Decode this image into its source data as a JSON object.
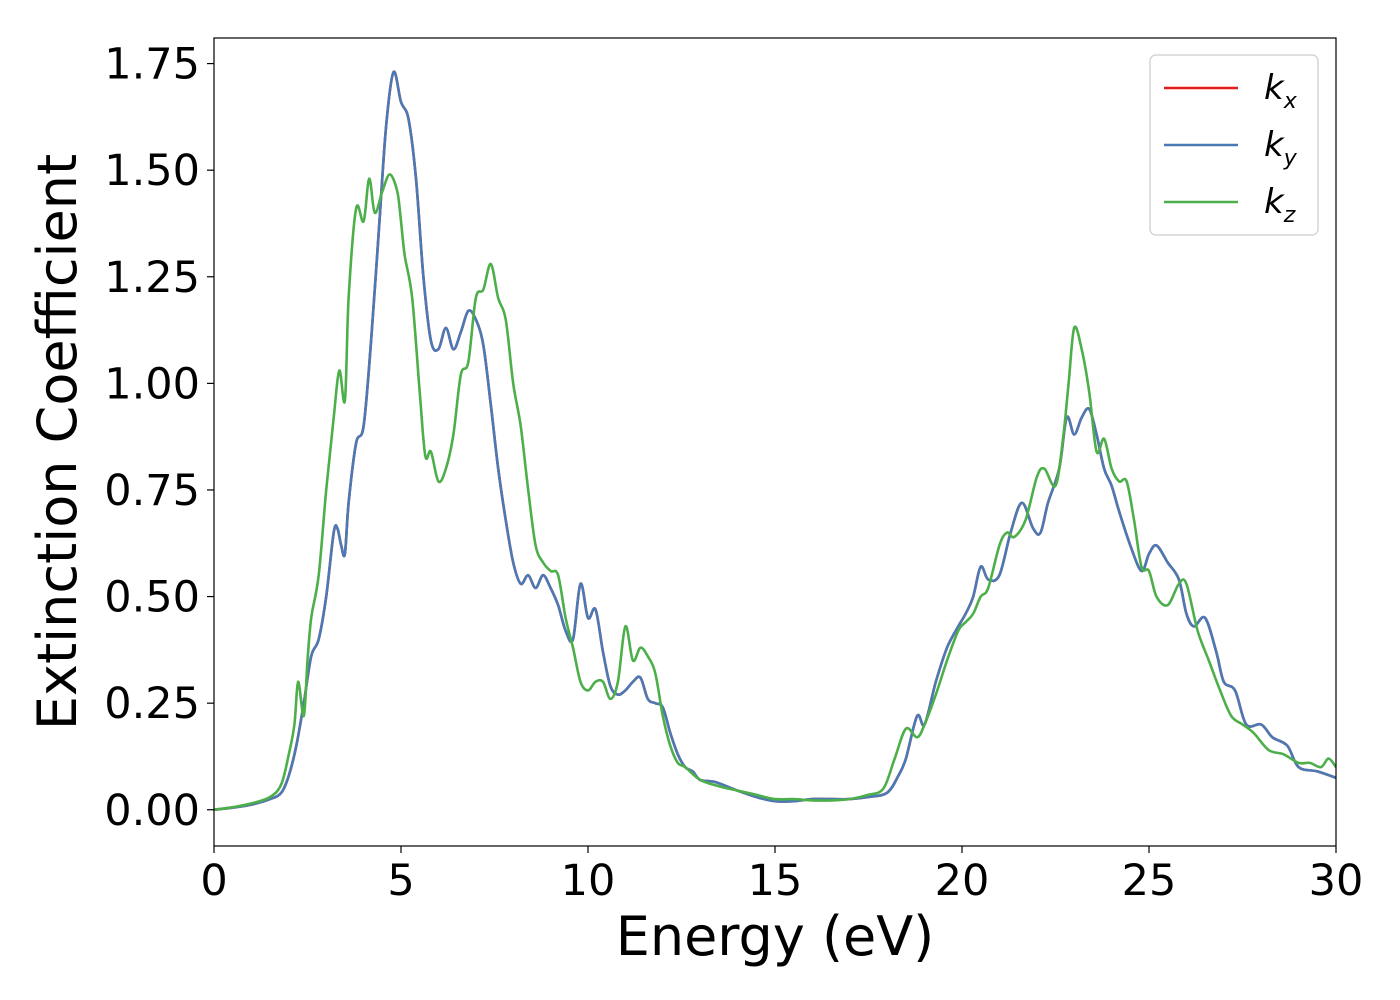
{
  "chart_data": {
    "type": "line",
    "xlabel": "Energy (eV)",
    "ylabel": "Extinction Coefficient",
    "xlim": [
      0,
      30
    ],
    "ylim": [
      -0.085,
      1.81
    ],
    "xticks": [
      0,
      5,
      10,
      15,
      20,
      25,
      30
    ],
    "xtick_labels": [
      "0",
      "5",
      "10",
      "15",
      "20",
      "25",
      "30"
    ],
    "yticks": [
      0,
      0.25,
      0.5,
      0.75,
      1.0,
      1.25,
      1.5,
      1.75
    ],
    "ytick_labels": [
      "0.00",
      "0.25",
      "0.50",
      "0.75",
      "1.00",
      "1.25",
      "1.50",
      "1.75"
    ],
    "grid": false,
    "legend_position": "top-right",
    "series": [
      {
        "name": "k_x",
        "label_main": "k",
        "label_sub": "x",
        "color": "#e41a1c",
        "x": [
          0,
          0.5,
          1.0,
          1.5,
          1.8,
          2.0,
          2.2,
          2.4,
          2.6,
          2.8,
          3.0,
          3.2,
          3.3,
          3.4,
          3.5,
          3.6,
          3.8,
          4.0,
          4.2,
          4.4,
          4.6,
          4.8,
          5.0,
          5.2,
          5.4,
          5.6,
          5.8,
          6.0,
          6.2,
          6.4,
          6.6,
          6.8,
          7.0,
          7.2,
          7.4,
          7.6,
          7.8,
          8.0,
          8.2,
          8.4,
          8.6,
          8.8,
          9.0,
          9.2,
          9.4,
          9.6,
          9.8,
          10.0,
          10.2,
          10.4,
          10.6,
          10.8,
          11.0,
          11.2,
          11.4,
          11.6,
          11.8,
          12.0,
          12.2,
          12.4,
          12.6,
          12.8,
          13.0,
          13.4,
          14.0,
          14.5,
          15.0,
          15.5,
          16.0,
          16.5,
          17.0,
          17.5,
          18.0,
          18.3,
          18.5,
          18.8,
          19.0,
          19.3,
          19.6,
          19.9,
          20.1,
          20.3,
          20.5,
          20.7,
          21.0,
          21.3,
          21.6,
          21.9,
          22.1,
          22.3,
          22.6,
          22.8,
          23.0,
          23.2,
          23.4,
          23.6,
          23.8,
          24.0,
          24.2,
          24.5,
          24.8,
          25.0,
          25.2,
          25.5,
          25.8,
          26.0,
          26.2,
          26.5,
          26.8,
          27.0,
          27.3,
          27.6,
          28.0,
          28.3,
          28.7,
          29.0,
          29.5,
          30.0
        ],
        "values": [
          0,
          0.005,
          0.012,
          0.025,
          0.04,
          0.08,
          0.15,
          0.25,
          0.36,
          0.4,
          0.5,
          0.65,
          0.66,
          0.62,
          0.6,
          0.72,
          0.86,
          0.9,
          1.1,
          1.35,
          1.6,
          1.73,
          1.66,
          1.62,
          1.48,
          1.25,
          1.1,
          1.08,
          1.13,
          1.08,
          1.12,
          1.17,
          1.15,
          1.09,
          0.95,
          0.8,
          0.68,
          0.58,
          0.53,
          0.55,
          0.52,
          0.55,
          0.52,
          0.48,
          0.42,
          0.4,
          0.53,
          0.45,
          0.47,
          0.37,
          0.29,
          0.27,
          0.28,
          0.3,
          0.31,
          0.26,
          0.25,
          0.24,
          0.18,
          0.13,
          0.1,
          0.09,
          0.07,
          0.065,
          0.045,
          0.03,
          0.02,
          0.02,
          0.025,
          0.025,
          0.025,
          0.03,
          0.04,
          0.08,
          0.12,
          0.22,
          0.2,
          0.3,
          0.38,
          0.43,
          0.46,
          0.5,
          0.57,
          0.54,
          0.55,
          0.65,
          0.72,
          0.66,
          0.65,
          0.72,
          0.8,
          0.92,
          0.88,
          0.92,
          0.94,
          0.88,
          0.8,
          0.76,
          0.7,
          0.62,
          0.56,
          0.6,
          0.62,
          0.58,
          0.54,
          0.46,
          0.43,
          0.45,
          0.37,
          0.3,
          0.28,
          0.2,
          0.2,
          0.17,
          0.15,
          0.1,
          0.09,
          0.075
        ]
      },
      {
        "name": "k_y",
        "label_main": "k",
        "label_sub": "y",
        "color": "#4a7ab5",
        "x": [
          0,
          0.5,
          1.0,
          1.5,
          1.8,
          2.0,
          2.2,
          2.4,
          2.6,
          2.8,
          3.0,
          3.2,
          3.3,
          3.4,
          3.5,
          3.6,
          3.8,
          4.0,
          4.2,
          4.4,
          4.6,
          4.8,
          5.0,
          5.2,
          5.4,
          5.6,
          5.8,
          6.0,
          6.2,
          6.4,
          6.6,
          6.8,
          7.0,
          7.2,
          7.4,
          7.6,
          7.8,
          8.0,
          8.2,
          8.4,
          8.6,
          8.8,
          9.0,
          9.2,
          9.4,
          9.6,
          9.8,
          10.0,
          10.2,
          10.4,
          10.6,
          10.8,
          11.0,
          11.2,
          11.4,
          11.6,
          11.8,
          12.0,
          12.2,
          12.4,
          12.6,
          12.8,
          13.0,
          13.4,
          14.0,
          14.5,
          15.0,
          15.5,
          16.0,
          16.5,
          17.0,
          17.5,
          18.0,
          18.3,
          18.5,
          18.8,
          19.0,
          19.3,
          19.6,
          19.9,
          20.1,
          20.3,
          20.5,
          20.7,
          21.0,
          21.3,
          21.6,
          21.9,
          22.1,
          22.3,
          22.6,
          22.8,
          23.0,
          23.2,
          23.4,
          23.6,
          23.8,
          24.0,
          24.2,
          24.5,
          24.8,
          25.0,
          25.2,
          25.5,
          25.8,
          26.0,
          26.2,
          26.5,
          26.8,
          27.0,
          27.3,
          27.6,
          28.0,
          28.3,
          28.7,
          29.0,
          29.5,
          30.0
        ],
        "values": [
          0,
          0.005,
          0.012,
          0.025,
          0.04,
          0.08,
          0.15,
          0.25,
          0.36,
          0.4,
          0.5,
          0.65,
          0.66,
          0.62,
          0.6,
          0.72,
          0.86,
          0.9,
          1.1,
          1.35,
          1.6,
          1.73,
          1.66,
          1.62,
          1.48,
          1.25,
          1.1,
          1.08,
          1.13,
          1.08,
          1.12,
          1.17,
          1.15,
          1.09,
          0.95,
          0.8,
          0.68,
          0.58,
          0.53,
          0.55,
          0.52,
          0.55,
          0.52,
          0.48,
          0.42,
          0.4,
          0.53,
          0.45,
          0.47,
          0.37,
          0.29,
          0.27,
          0.28,
          0.3,
          0.31,
          0.26,
          0.25,
          0.24,
          0.18,
          0.13,
          0.1,
          0.09,
          0.07,
          0.065,
          0.045,
          0.03,
          0.02,
          0.02,
          0.025,
          0.025,
          0.025,
          0.03,
          0.04,
          0.08,
          0.12,
          0.22,
          0.2,
          0.3,
          0.38,
          0.43,
          0.46,
          0.5,
          0.57,
          0.54,
          0.55,
          0.65,
          0.72,
          0.66,
          0.65,
          0.72,
          0.8,
          0.92,
          0.88,
          0.92,
          0.94,
          0.88,
          0.8,
          0.76,
          0.7,
          0.62,
          0.56,
          0.6,
          0.62,
          0.58,
          0.54,
          0.46,
          0.43,
          0.45,
          0.37,
          0.3,
          0.28,
          0.2,
          0.2,
          0.17,
          0.15,
          0.1,
          0.09,
          0.075
        ]
      },
      {
        "name": "k_z",
        "label_main": "k",
        "label_sub": "z",
        "color": "#4daf4a",
        "x": [
          0,
          0.5,
          1.0,
          1.5,
          1.8,
          2.0,
          2.15,
          2.25,
          2.4,
          2.5,
          2.6,
          2.8,
          3.0,
          3.2,
          3.35,
          3.5,
          3.6,
          3.8,
          4.0,
          4.15,
          4.3,
          4.5,
          4.7,
          4.9,
          5.0,
          5.1,
          5.3,
          5.5,
          5.65,
          5.8,
          6.0,
          6.2,
          6.4,
          6.6,
          6.8,
          7.0,
          7.2,
          7.4,
          7.6,
          7.8,
          8.0,
          8.2,
          8.4,
          8.6,
          8.8,
          9.0,
          9.2,
          9.4,
          9.6,
          9.8,
          10.0,
          10.2,
          10.4,
          10.6,
          10.8,
          11.0,
          11.2,
          11.4,
          11.6,
          11.8,
          12.0,
          12.2,
          12.4,
          12.6,
          13.0,
          13.5,
          14.0,
          14.5,
          15.0,
          15.5,
          16.0,
          16.5,
          17.0,
          17.5,
          17.9,
          18.2,
          18.5,
          18.8,
          19.0,
          19.3,
          19.6,
          19.9,
          20.1,
          20.3,
          20.5,
          20.7,
          21.0,
          21.2,
          21.4,
          21.7,
          22.0,
          22.2,
          22.5,
          22.7,
          22.85,
          23.0,
          23.2,
          23.4,
          23.6,
          23.8,
          24.0,
          24.2,
          24.4,
          24.6,
          24.8,
          25.0,
          25.2,
          25.5,
          25.8,
          26.0,
          26.3,
          26.6,
          26.9,
          27.2,
          27.5,
          27.8,
          28.2,
          28.6,
          29.0,
          29.3,
          29.6,
          29.8,
          30.0
        ],
        "values": [
          0,
          0.006,
          0.015,
          0.03,
          0.06,
          0.13,
          0.2,
          0.3,
          0.22,
          0.35,
          0.45,
          0.55,
          0.75,
          0.92,
          1.03,
          0.96,
          1.2,
          1.41,
          1.38,
          1.48,
          1.4,
          1.45,
          1.49,
          1.45,
          1.38,
          1.3,
          1.2,
          0.98,
          0.83,
          0.84,
          0.77,
          0.8,
          0.88,
          1.02,
          1.05,
          1.2,
          1.22,
          1.28,
          1.2,
          1.15,
          1.0,
          0.9,
          0.75,
          0.62,
          0.58,
          0.56,
          0.55,
          0.45,
          0.38,
          0.3,
          0.28,
          0.3,
          0.3,
          0.26,
          0.3,
          0.43,
          0.35,
          0.38,
          0.36,
          0.32,
          0.22,
          0.15,
          0.11,
          0.1,
          0.07,
          0.055,
          0.045,
          0.035,
          0.025,
          0.025,
          0.022,
          0.022,
          0.025,
          0.035,
          0.05,
          0.12,
          0.19,
          0.17,
          0.2,
          0.27,
          0.35,
          0.42,
          0.44,
          0.46,
          0.5,
          0.52,
          0.62,
          0.65,
          0.64,
          0.68,
          0.78,
          0.8,
          0.76,
          0.87,
          1.0,
          1.13,
          1.08,
          0.98,
          0.84,
          0.87,
          0.8,
          0.77,
          0.77,
          0.68,
          0.57,
          0.56,
          0.5,
          0.48,
          0.53,
          0.53,
          0.42,
          0.35,
          0.28,
          0.22,
          0.2,
          0.18,
          0.14,
          0.13,
          0.11,
          0.11,
          0.1,
          0.12,
          0.1
        ]
      }
    ]
  }
}
